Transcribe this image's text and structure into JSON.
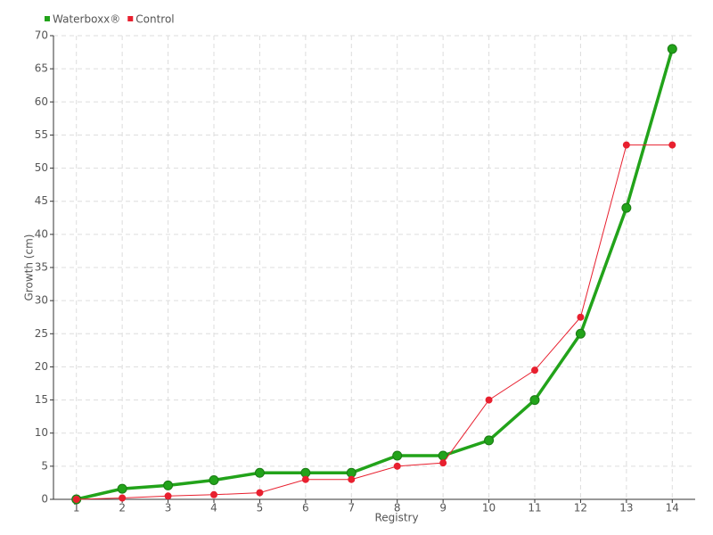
{
  "chart_data": {
    "type": "line",
    "x_label": "Registry",
    "y_label": "Growth (cm)",
    "x": [
      1,
      2,
      3,
      4,
      5,
      6,
      7,
      8,
      9,
      10,
      11,
      12,
      13,
      14
    ],
    "series": [
      {
        "name": "Waterboxx®",
        "color": "#22a31a",
        "values": [
          0,
          1.6,
          2.1,
          2.9,
          4,
          4,
          4,
          6.6,
          6.6,
          8.9,
          15,
          25,
          44,
          68
        ]
      },
      {
        "name": "Control",
        "color": "#e8202f",
        "values": [
          0,
          0.2,
          0.5,
          0.7,
          1,
          3,
          3,
          5,
          5.5,
          15,
          19.5,
          27.5,
          53.5,
          53.5
        ]
      }
    ],
    "xlim": [
      0.5,
      14.5
    ],
    "xticks": [
      1,
      2,
      3,
      4,
      5,
      6,
      7,
      8,
      9,
      10,
      11,
      12,
      13,
      14
    ],
    "ylim": [
      0,
      70
    ],
    "yticks": [
      0,
      5,
      10,
      15,
      20,
      25,
      30,
      35,
      40,
      45,
      50,
      55,
      60,
      65,
      70
    ],
    "grid": true,
    "legend": "top-left"
  }
}
